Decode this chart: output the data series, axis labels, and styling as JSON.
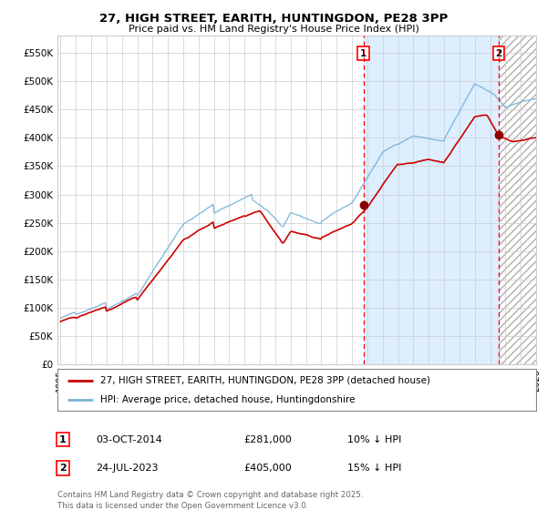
{
  "title": "27, HIGH STREET, EARITH, HUNTINGDON, PE28 3PP",
  "subtitle": "Price paid vs. HM Land Registry's House Price Index (HPI)",
  "ylim": [
    0,
    580000
  ],
  "yticks": [
    0,
    50000,
    100000,
    150000,
    200000,
    250000,
    300000,
    350000,
    400000,
    450000,
    500000,
    550000
  ],
  "ytick_labels": [
    "£0",
    "£50K",
    "£100K",
    "£150K",
    "£200K",
    "£250K",
    "£300K",
    "£350K",
    "£400K",
    "£450K",
    "£500K",
    "£550K"
  ],
  "year_start": 1995,
  "year_end": 2026,
  "hpi_color": "#7ab4d8",
  "price_color": "#cc0000",
  "marker_color": "#8b0000",
  "bg_color": "#ffffff",
  "grid_color": "#cccccc",
  "shaded_region_color": "#ddeeff",
  "hatch_color": "#b0b0b0",
  "purchase1_year": 2014.75,
  "purchase1_price": 281000,
  "purchase2_year": 2023.56,
  "purchase2_price": 405000,
  "legend_label1": "27, HIGH STREET, EARITH, HUNTINGDON, PE28 3PP (detached house)",
  "legend_label2": "HPI: Average price, detached house, Huntingdonshire",
  "note1_label": "1",
  "note1_date": "03-OCT-2014",
  "note1_price": "£281,000",
  "note1_desc": "10% ↓ HPI",
  "note2_label": "2",
  "note2_date": "24-JUL-2023",
  "note2_price": "£405,000",
  "note2_desc": "15% ↓ HPI",
  "footer": "Contains HM Land Registry data © Crown copyright and database right 2025.\nThis data is licensed under the Open Government Licence v3.0."
}
